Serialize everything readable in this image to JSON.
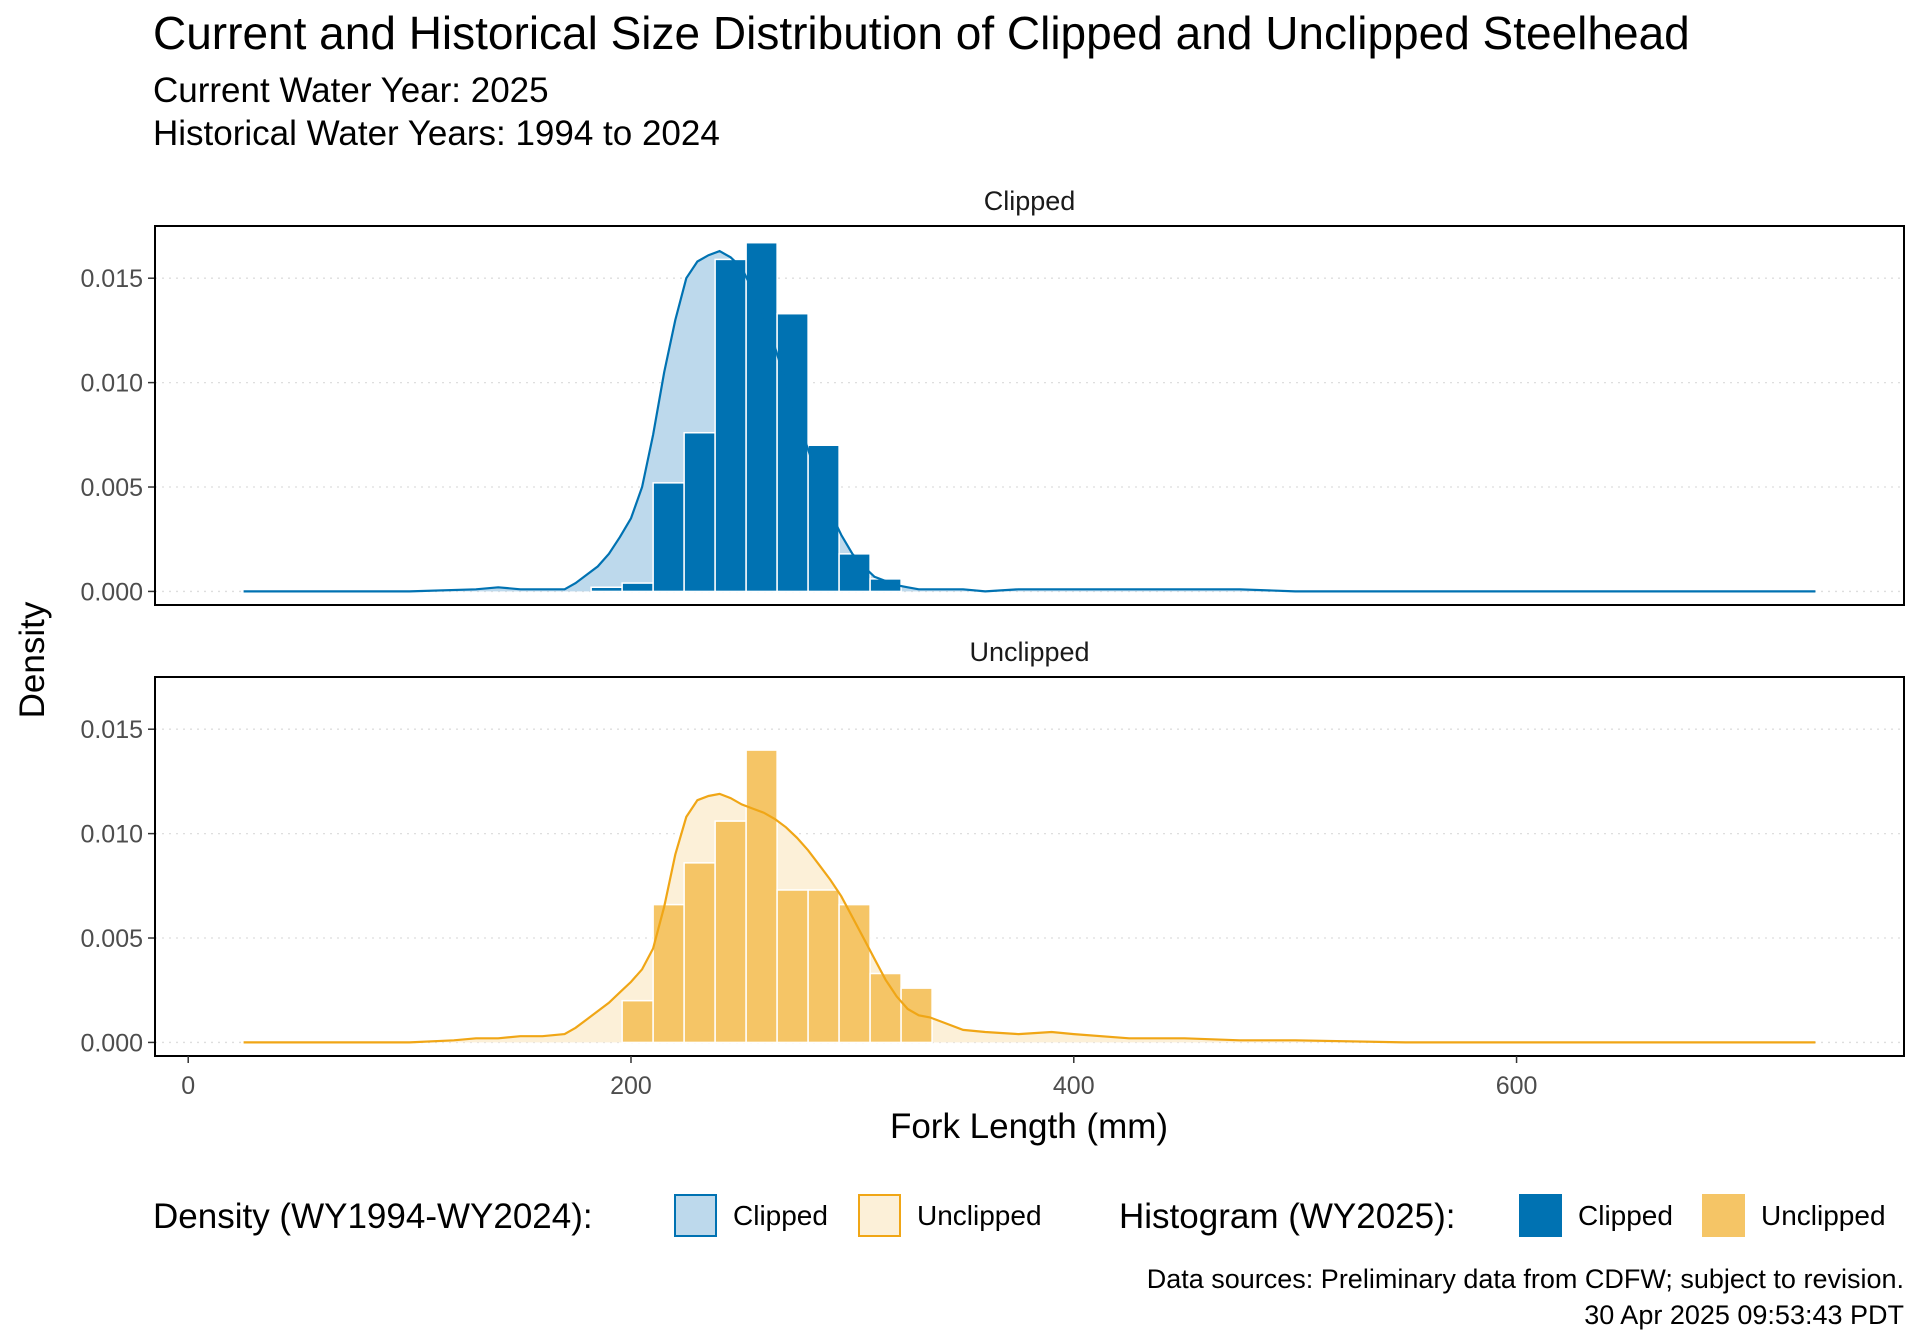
{
  "title": "Current and Historical Size Distribution of Clipped and Unclipped Steelhead",
  "subtitle_line1": "Current Water Year: 2025",
  "subtitle_line2": "Historical Water Years: 1994 to 2024",
  "caption_line1": "Data sources: Preliminary data from CDFW; subject to revision.",
  "caption_line2": "30 Apr 2025 09:53:43 PDT",
  "legend": {
    "density_title": "Density (WY1994-WY2024):",
    "histogram_title": "Histogram (WY2025):",
    "clipped_label": "Clipped",
    "unclipped_label": "Unclipped"
  },
  "colors": {
    "clipped": "#0072B2",
    "unclipped": "#F5C566",
    "unclipped_line": "#F0A616",
    "clipped_fill_light": "#BDD9EC",
    "unclipped_fill_light": "#FCF0D8"
  },
  "chart_data": {
    "type": "histogram+density",
    "xlabel": "Fork Length (mm)",
    "ylabel": "Density",
    "xlim": [
      -15,
      775
    ],
    "ylim": [
      -0.00065,
      0.0175
    ],
    "x_ticks": [
      0,
      200,
      400,
      600
    ],
    "x_tick_labels": [
      "0",
      "200",
      "400",
      "600"
    ],
    "y_ticks": [
      0,
      0.005,
      0.01,
      0.015
    ],
    "y_tick_labels": [
      "0.000",
      "0.005",
      "0.010",
      "0.015"
    ],
    "grid": "horizontal dotted",
    "legend_position": "bottom",
    "bin_width": 14,
    "panels": [
      {
        "name": "Clipped",
        "histogram": {
          "bin_starts": [
            182,
            196,
            210,
            224,
            238,
            252,
            266,
            280,
            294,
            308
          ],
          "values": [
            0.0002,
            0.0004,
            0.0052,
            0.0076,
            0.0159,
            0.0167,
            0.0133,
            0.007,
            0.0018,
            0.0006
          ]
        },
        "density": {
          "x": [
            25,
            60,
            100,
            130,
            140,
            150,
            160,
            170,
            175,
            180,
            185,
            190,
            195,
            200,
            205,
            210,
            215,
            220,
            225,
            230,
            235,
            240,
            245,
            250,
            255,
            260,
            265,
            270,
            275,
            280,
            285,
            290,
            295,
            300,
            305,
            310,
            315,
            320,
            325,
            330,
            340,
            350,
            360,
            375,
            400,
            425,
            450,
            475,
            500,
            525,
            550,
            600,
            650,
            700,
            735
          ],
          "y": [
            0.0,
            0.0,
            0.0,
            0.0001,
            0.0002,
            0.0001,
            0.0001,
            0.0001,
            0.0004,
            0.0008,
            0.0012,
            0.0018,
            0.0026,
            0.0035,
            0.005,
            0.0075,
            0.0105,
            0.013,
            0.015,
            0.0158,
            0.0161,
            0.0163,
            0.016,
            0.0155,
            0.0144,
            0.0132,
            0.0117,
            0.01,
            0.0083,
            0.0068,
            0.0052,
            0.0038,
            0.0027,
            0.0018,
            0.0012,
            0.0007,
            0.0005,
            0.0003,
            0.0002,
            0.0001,
            0.0001,
            0.0001,
            0.0,
            0.0001,
            0.0001,
            0.0001,
            0.0001,
            0.0001,
            0.0,
            0.0,
            0.0,
            0.0,
            0.0,
            0.0,
            0.0
          ]
        }
      },
      {
        "name": "Unclipped",
        "histogram": {
          "bin_starts": [
            196,
            210,
            224,
            238,
            252,
            266,
            280,
            294,
            308,
            322
          ],
          "values": [
            0.002,
            0.0066,
            0.0086,
            0.0106,
            0.014,
            0.0073,
            0.0073,
            0.0066,
            0.0033,
            0.0026
          ]
        },
        "density": {
          "x": [
            25,
            60,
            100,
            120,
            130,
            140,
            150,
            160,
            170,
            175,
            180,
            185,
            190,
            195,
            200,
            205,
            210,
            215,
            220,
            225,
            230,
            235,
            240,
            245,
            250,
            255,
            260,
            265,
            270,
            275,
            280,
            285,
            290,
            295,
            300,
            305,
            310,
            315,
            320,
            325,
            330,
            335,
            340,
            350,
            360,
            375,
            390,
            400,
            425,
            450,
            475,
            500,
            550,
            600,
            650,
            700,
            735
          ],
          "y": [
            0.0,
            0.0,
            0.0,
            0.0001,
            0.0002,
            0.0002,
            0.0003,
            0.0003,
            0.0004,
            0.0007,
            0.0011,
            0.0015,
            0.0019,
            0.0024,
            0.0029,
            0.0035,
            0.0045,
            0.0065,
            0.009,
            0.0108,
            0.0116,
            0.0118,
            0.0119,
            0.0117,
            0.0114,
            0.0112,
            0.011,
            0.0107,
            0.0103,
            0.0098,
            0.0092,
            0.0085,
            0.0078,
            0.007,
            0.006,
            0.005,
            0.004,
            0.003,
            0.0022,
            0.0016,
            0.0013,
            0.0012,
            0.001,
            0.0006,
            0.0005,
            0.0004,
            0.0005,
            0.0004,
            0.0002,
            0.0002,
            0.0001,
            0.0001,
            0.0,
            0.0,
            0.0,
            0.0,
            0.0
          ]
        }
      }
    ]
  }
}
